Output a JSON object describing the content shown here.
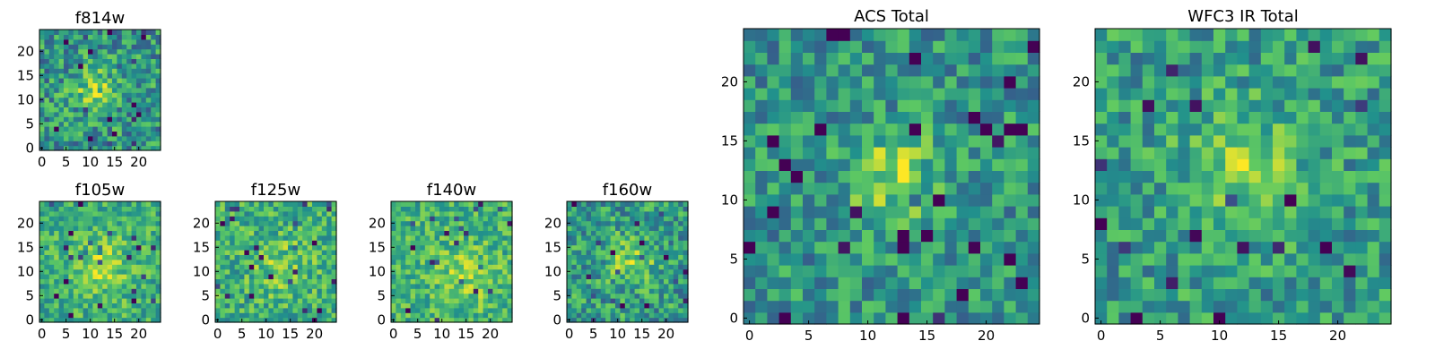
{
  "figure": {
    "colormap_colors": [
      "#440154",
      "#3b528b",
      "#21918c",
      "#5ec962",
      "#fde725"
    ]
  },
  "chart_data": [
    {
      "id": "f814w",
      "type": "heatmap",
      "title": "f814w",
      "grid_size": 25,
      "xlim": [
        -0.5,
        24.5
      ],
      "ylim": [
        -0.5,
        24.5
      ],
      "xticks": [
        "0",
        "5",
        "10",
        "15",
        "20"
      ],
      "yticks": [
        "0",
        "5",
        "10",
        "15",
        "20"
      ],
      "seed": 11,
      "peak": [
        11,
        12
      ],
      "peak_amp": 0.28,
      "noise": 0.26,
      "spread": 3.2,
      "base": 0.52
    },
    {
      "id": "f105w",
      "type": "heatmap",
      "title": "f105w",
      "grid_size": 25,
      "xlim": [
        -0.5,
        24.5
      ],
      "ylim": [
        -0.5,
        24.5
      ],
      "xticks": [
        "0",
        "5",
        "10",
        "15",
        "20"
      ],
      "yticks": [
        "0",
        "5",
        "10",
        "15",
        "20"
      ],
      "seed": 23,
      "peak": [
        12,
        11
      ],
      "peak_amp": 0.22,
      "noise": 0.2,
      "spread": 4.5,
      "base": 0.62
    },
    {
      "id": "f125w",
      "type": "heatmap",
      "title": "f125w",
      "grid_size": 25,
      "xlim": [
        -0.5,
        24.5
      ],
      "ylim": [
        -0.5,
        24.5
      ],
      "xticks": [
        "0",
        "5",
        "10",
        "15",
        "20"
      ],
      "yticks": [
        "0",
        "5",
        "10",
        "15",
        "20"
      ],
      "seed": 37,
      "peak": [
        13,
        11
      ],
      "peak_amp": 0.15,
      "noise": 0.22,
      "spread": 4.5,
      "base": 0.62
    },
    {
      "id": "f140w",
      "type": "heatmap",
      "title": "f140w",
      "grid_size": 25,
      "xlim": [
        -0.5,
        24.5
      ],
      "ylim": [
        -0.5,
        24.5
      ],
      "xticks": [
        "0",
        "5",
        "10",
        "15",
        "20"
      ],
      "yticks": [
        "0",
        "5",
        "10",
        "15",
        "20"
      ],
      "seed": 41,
      "peak": [
        15,
        9
      ],
      "peak_amp": 0.18,
      "noise": 0.2,
      "spread": 4.5,
      "base": 0.64
    },
    {
      "id": "f160w",
      "type": "heatmap",
      "title": "f160w",
      "grid_size": 25,
      "xlim": [
        -0.5,
        24.5
      ],
      "ylim": [
        -0.5,
        24.5
      ],
      "xticks": [
        "0",
        "5",
        "10",
        "15",
        "20"
      ],
      "yticks": [
        "0",
        "5",
        "10",
        "15",
        "20"
      ],
      "seed": 53,
      "peak": [
        13,
        12
      ],
      "peak_amp": 0.25,
      "noise": 0.24,
      "spread": 3.5,
      "base": 0.55
    },
    {
      "id": "acs-total",
      "type": "heatmap",
      "title": "ACS Total",
      "grid_size": 25,
      "xlim": [
        -0.5,
        24.5
      ],
      "ylim": [
        -0.5,
        24.5
      ],
      "xticks": [
        "0",
        "5",
        "10",
        "15",
        "20"
      ],
      "yticks": [
        "0",
        "5",
        "10",
        "15",
        "20"
      ],
      "seed": 67,
      "peak": [
        12,
        12
      ],
      "peak_amp": 0.32,
      "noise": 0.22,
      "spread": 2.6,
      "base": 0.52
    },
    {
      "id": "wfc3-ir-total",
      "type": "heatmap",
      "title": "WFC3 IR Total",
      "grid_size": 25,
      "xlim": [
        -0.5,
        24.5
      ],
      "ylim": [
        -0.5,
        24.5
      ],
      "xticks": [
        "0",
        "5",
        "10",
        "15",
        "20"
      ],
      "yticks": [
        "0",
        "5",
        "10",
        "15",
        "20"
      ],
      "seed": 79,
      "peak": [
        12,
        13
      ],
      "peak_amp": 0.28,
      "noise": 0.22,
      "spread": 3.2,
      "base": 0.55
    }
  ]
}
